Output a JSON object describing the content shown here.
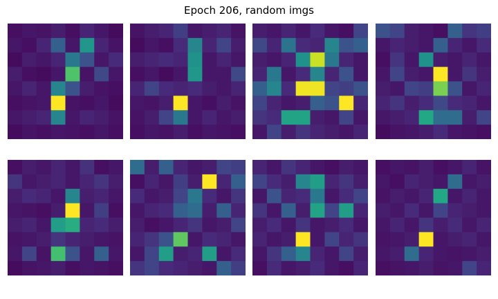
{
  "figure": {
    "title": "Epoch 206, random imgs"
  },
  "colormap": [
    "#440154",
    "#482475",
    "#414487",
    "#355f8d",
    "#2a788e",
    "#21918c",
    "#22a884",
    "#44bf70",
    "#7ad151",
    "#bddf26",
    "#fde725"
  ],
  "chart_data": {
    "type": "heatmap",
    "title": "Epoch 206, random imgs",
    "value_range": [
      0,
      1
    ],
    "grid": false,
    "layout": {
      "rows": 2,
      "cols": 4
    },
    "images": [
      {
        "name": "",
        "values": [
          [
            0.04,
            0.06,
            0.05,
            0.08,
            0.04,
            0.1,
            0.06,
            0.03
          ],
          [
            0.06,
            0.04,
            0.1,
            0.3,
            0.06,
            0.52,
            0.1,
            0.05
          ],
          [
            0.03,
            0.08,
            0.06,
            0.1,
            0.4,
            0.25,
            0.06,
            0.12
          ],
          [
            0.08,
            0.04,
            0.03,
            0.06,
            0.72,
            0.05,
            0.22,
            0.06
          ],
          [
            0.06,
            0.1,
            0.06,
            0.45,
            0.25,
            0.08,
            0.05,
            0.04
          ],
          [
            0.04,
            0.05,
            0.06,
            1.0,
            0.05,
            0.04,
            0.06,
            0.03
          ],
          [
            0.06,
            0.08,
            0.1,
            0.45,
            0.06,
            0.1,
            0.08,
            0.05
          ],
          [
            0.03,
            0.05,
            0.04,
            0.06,
            0.05,
            0.04,
            0.06,
            0.04
          ]
        ]
      },
      {
        "name": "",
        "values": [
          [
            0.05,
            0.08,
            0.1,
            0.18,
            0.06,
            0.08,
            0.1,
            0.05
          ],
          [
            0.03,
            0.06,
            0.04,
            0.12,
            0.45,
            0.1,
            0.2,
            0.08
          ],
          [
            0.08,
            0.1,
            0.12,
            0.1,
            0.5,
            0.06,
            0.1,
            0.06
          ],
          [
            0.04,
            0.06,
            0.03,
            0.06,
            0.52,
            0.06,
            0.06,
            0.22
          ],
          [
            0.1,
            0.2,
            0.12,
            0.1,
            0.12,
            0.08,
            0.06,
            0.1
          ],
          [
            0.06,
            0.05,
            0.08,
            1.0,
            0.06,
            0.04,
            0.08,
            0.05
          ],
          [
            0.05,
            0.08,
            0.2,
            0.4,
            0.06,
            0.1,
            0.06,
            0.08
          ],
          [
            0.04,
            0.06,
            0.05,
            0.08,
            0.04,
            0.06,
            0.05,
            0.04
          ]
        ]
      },
      {
        "name": "",
        "values": [
          [
            0.08,
            0.06,
            0.1,
            0.06,
            0.12,
            0.06,
            0.04,
            0.2
          ],
          [
            0.22,
            0.1,
            0.38,
            0.12,
            0.1,
            0.45,
            0.25,
            0.3
          ],
          [
            0.08,
            0.06,
            0.1,
            0.5,
            0.92,
            0.4,
            0.1,
            0.06
          ],
          [
            0.1,
            0.4,
            0.06,
            0.12,
            0.45,
            0.1,
            0.25,
            0.06
          ],
          [
            0.3,
            0.45,
            0.12,
            0.98,
            0.98,
            0.2,
            0.18,
            0.25
          ],
          [
            0.2,
            0.1,
            0.06,
            0.08,
            0.3,
            0.25,
            1.0,
            0.1
          ],
          [
            0.15,
            0.12,
            0.58,
            0.58,
            0.08,
            0.06,
            0.2,
            0.06
          ],
          [
            0.06,
            0.2,
            0.08,
            0.15,
            0.1,
            0.08,
            0.06,
            0.1
          ]
        ]
      },
      {
        "name": "",
        "values": [
          [
            0.25,
            0.2,
            0.08,
            0.06,
            0.04,
            0.3,
            0.15,
            0.18
          ],
          [
            0.06,
            0.1,
            0.08,
            0.06,
            0.3,
            0.1,
            0.06,
            0.12
          ],
          [
            0.04,
            0.15,
            0.06,
            0.5,
            0.08,
            0.06,
            0.1,
            0.06
          ],
          [
            0.06,
            0.2,
            0.08,
            0.06,
            1.0,
            0.06,
            0.15,
            0.08
          ],
          [
            0.08,
            0.06,
            0.2,
            0.18,
            0.8,
            0.25,
            0.06,
            0.1
          ],
          [
            0.1,
            0.15,
            0.08,
            0.12,
            0.22,
            0.12,
            0.1,
            0.06
          ],
          [
            0.06,
            0.08,
            0.1,
            0.6,
            0.35,
            0.35,
            0.08,
            0.2
          ],
          [
            0.03,
            0.05,
            0.06,
            0.08,
            0.12,
            0.06,
            0.05,
            0.04
          ]
        ]
      },
      {
        "name": "",
        "values": [
          [
            0.04,
            0.08,
            0.06,
            0.1,
            0.06,
            0.14,
            0.04,
            0.06
          ],
          [
            0.15,
            0.06,
            0.08,
            0.1,
            0.06,
            0.1,
            0.15,
            0.08
          ],
          [
            0.08,
            0.12,
            0.1,
            0.06,
            0.45,
            0.08,
            0.1,
            0.06
          ],
          [
            0.06,
            0.05,
            0.04,
            0.08,
            1.0,
            0.06,
            0.18,
            0.04
          ],
          [
            0.08,
            0.1,
            0.06,
            0.55,
            0.62,
            0.1,
            0.12,
            0.08
          ],
          [
            0.05,
            0.06,
            0.08,
            0.15,
            0.1,
            0.08,
            0.06,
            0.05
          ],
          [
            0.06,
            0.2,
            0.05,
            0.7,
            0.25,
            0.06,
            0.3,
            0.06
          ],
          [
            0.03,
            0.05,
            0.06,
            0.08,
            0.04,
            0.06,
            0.05,
            0.04
          ]
        ]
      },
      {
        "name": "",
        "values": [
          [
            0.35,
            0.08,
            0.3,
            0.1,
            0.06,
            0.08,
            0.2,
            0.18
          ],
          [
            0.04,
            0.1,
            0.06,
            0.18,
            0.08,
            1.0,
            0.1,
            0.3
          ],
          [
            0.12,
            0.06,
            0.08,
            0.2,
            0.4,
            0.12,
            0.06,
            0.15
          ],
          [
            0.06,
            0.1,
            0.12,
            0.3,
            0.35,
            0.08,
            0.3,
            0.1
          ],
          [
            0.08,
            0.04,
            0.06,
            0.1,
            0.15,
            0.06,
            0.08,
            0.2
          ],
          [
            0.1,
            0.15,
            0.25,
            0.75,
            0.06,
            0.12,
            0.1,
            0.06
          ],
          [
            0.06,
            0.2,
            0.55,
            0.08,
            0.1,
            0.55,
            0.06,
            0.12
          ],
          [
            0.15,
            0.2,
            0.12,
            0.1,
            0.08,
            0.06,
            0.3,
            0.18
          ]
        ]
      },
      {
        "name": "",
        "values": [
          [
            0.1,
            0.06,
            0.15,
            0.1,
            0.06,
            0.04,
            0.08,
            0.06
          ],
          [
            0.2,
            0.12,
            0.08,
            0.45,
            0.55,
            0.1,
            0.15,
            0.08
          ],
          [
            0.06,
            0.25,
            0.1,
            0.12,
            0.4,
            0.06,
            0.12,
            0.2
          ],
          [
            0.15,
            0.06,
            0.3,
            0.08,
            0.58,
            0.2,
            0.55,
            0.1
          ],
          [
            0.08,
            0.12,
            0.06,
            0.15,
            0.06,
            0.08,
            0.12,
            0.06
          ],
          [
            0.1,
            0.06,
            0.08,
            1.0,
            0.06,
            0.2,
            0.1,
            0.15
          ],
          [
            0.06,
            0.15,
            0.3,
            0.45,
            0.1,
            0.06,
            0.2,
            0.08
          ],
          [
            0.04,
            0.12,
            0.06,
            0.08,
            0.12,
            0.06,
            0.04,
            0.1
          ]
        ]
      },
      {
        "name": "",
        "values": [
          [
            0.04,
            0.06,
            0.05,
            0.08,
            0.04,
            0.06,
            0.1,
            0.05
          ],
          [
            0.06,
            0.04,
            0.1,
            0.08,
            0.06,
            0.35,
            0.06,
            0.08
          ],
          [
            0.05,
            0.08,
            0.06,
            0.1,
            0.6,
            0.06,
            0.1,
            0.06
          ],
          [
            0.08,
            0.06,
            0.12,
            0.06,
            0.2,
            0.1,
            0.08,
            0.06
          ],
          [
            0.06,
            0.1,
            0.06,
            0.15,
            0.08,
            0.12,
            0.06,
            0.1
          ],
          [
            0.05,
            0.06,
            0.08,
            1.0,
            0.06,
            0.08,
            0.1,
            0.06
          ],
          [
            0.06,
            0.08,
            0.35,
            0.1,
            0.06,
            0.05,
            0.06,
            0.08
          ],
          [
            0.04,
            0.05,
            0.06,
            0.08,
            0.05,
            0.06,
            0.2,
            0.1
          ]
        ]
      }
    ]
  }
}
